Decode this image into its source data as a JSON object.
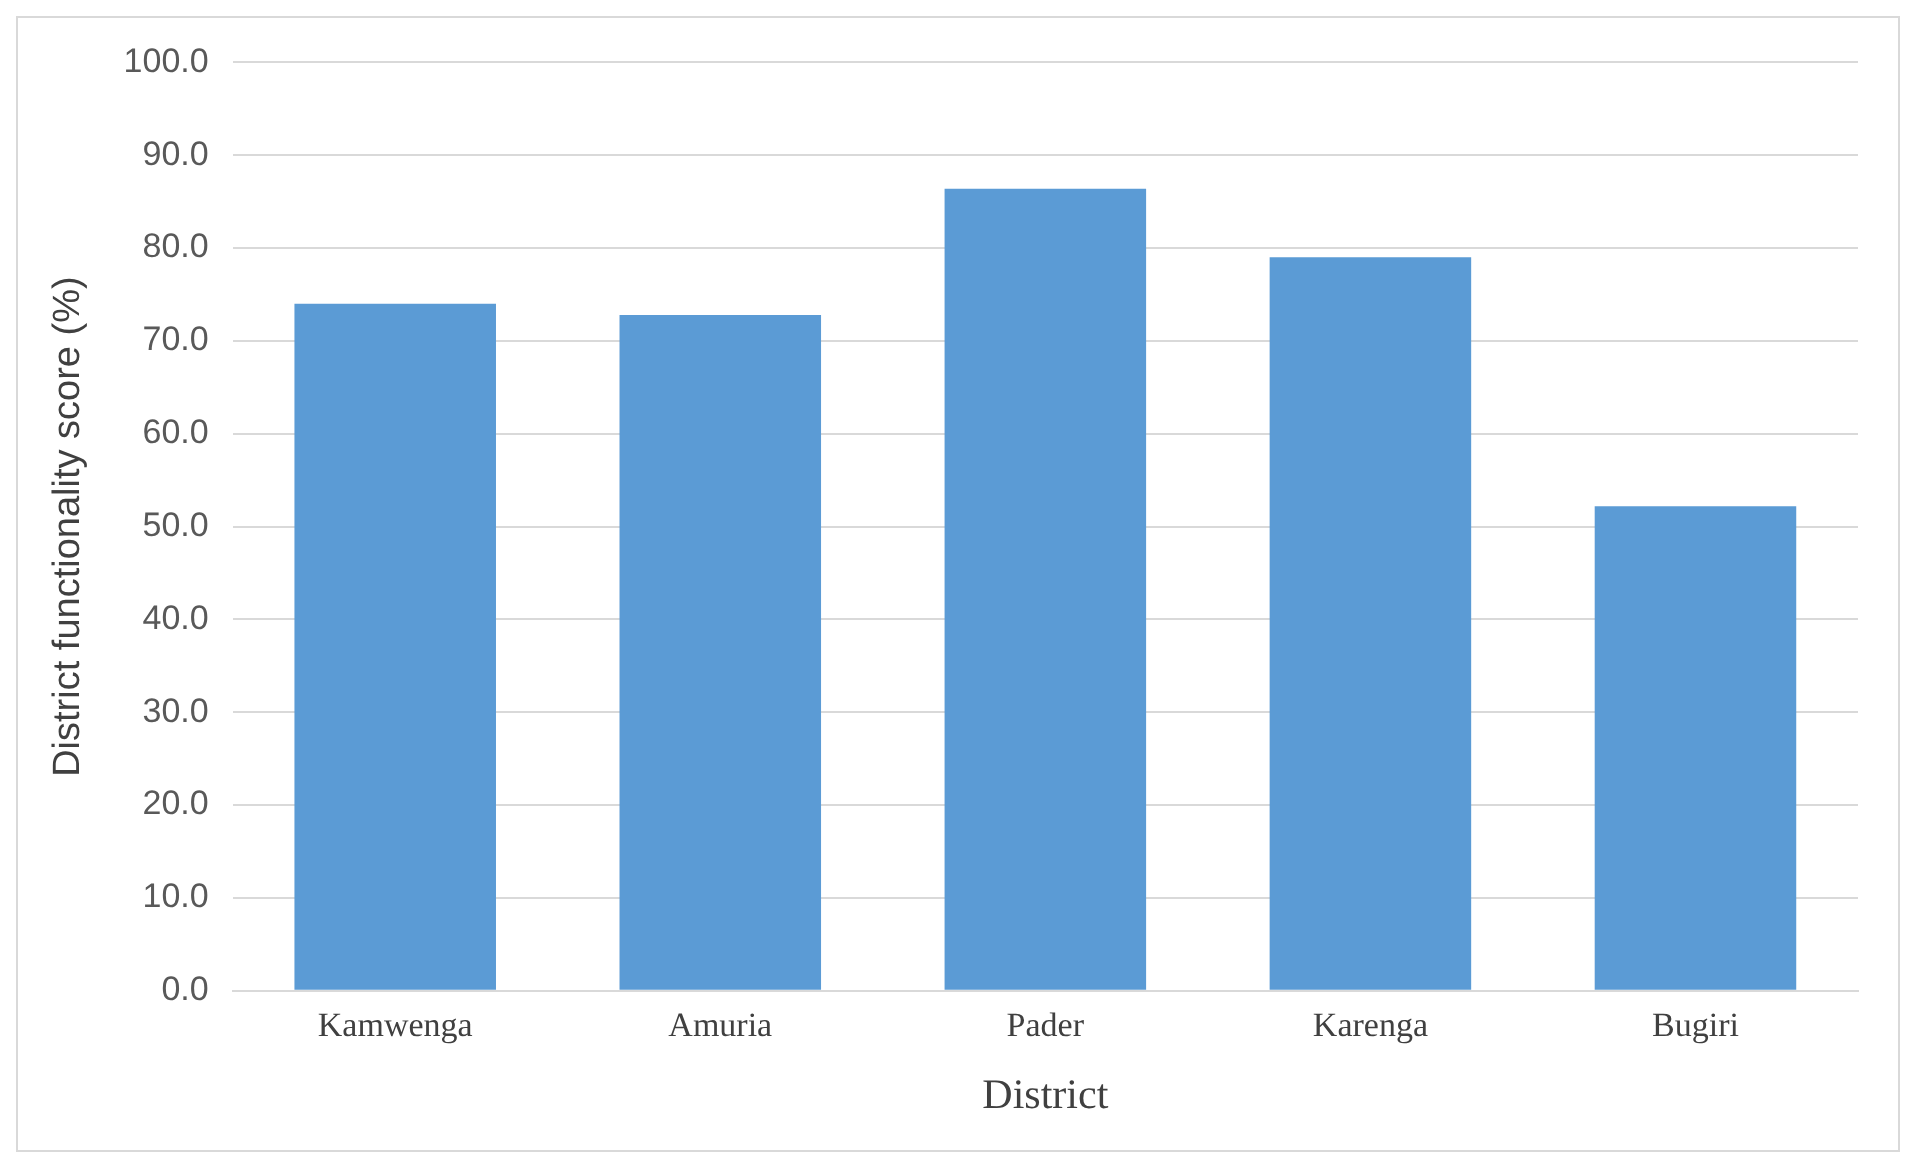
{
  "chart_data": {
    "type": "bar",
    "xlabel": "District",
    "ylabel": "District functionality score (%)",
    "categories": [
      "Kamwenga",
      "Amuria",
      "Pader",
      "Karenga",
      "Bugiri"
    ],
    "values": [
      74.0,
      72.8,
      86.4,
      79.0,
      52.2
    ],
    "color": "#5b9bd5",
    "ylim": [
      0,
      100
    ],
    "yticks": [
      {
        "value": 0,
        "label": "0.0"
      },
      {
        "value": 10,
        "label": "10.0"
      },
      {
        "value": 20,
        "label": "20.0"
      },
      {
        "value": 30,
        "label": "30.0"
      },
      {
        "value": 40,
        "label": "40.0"
      },
      {
        "value": 50,
        "label": "50.0"
      },
      {
        "value": 60,
        "label": "60.0"
      },
      {
        "value": 70,
        "label": "70.0"
      },
      {
        "value": 80,
        "label": "80.0"
      },
      {
        "value": 90,
        "label": "90.0"
      },
      {
        "value": 100,
        "label": "100.0"
      }
    ],
    "grid": "y"
  }
}
